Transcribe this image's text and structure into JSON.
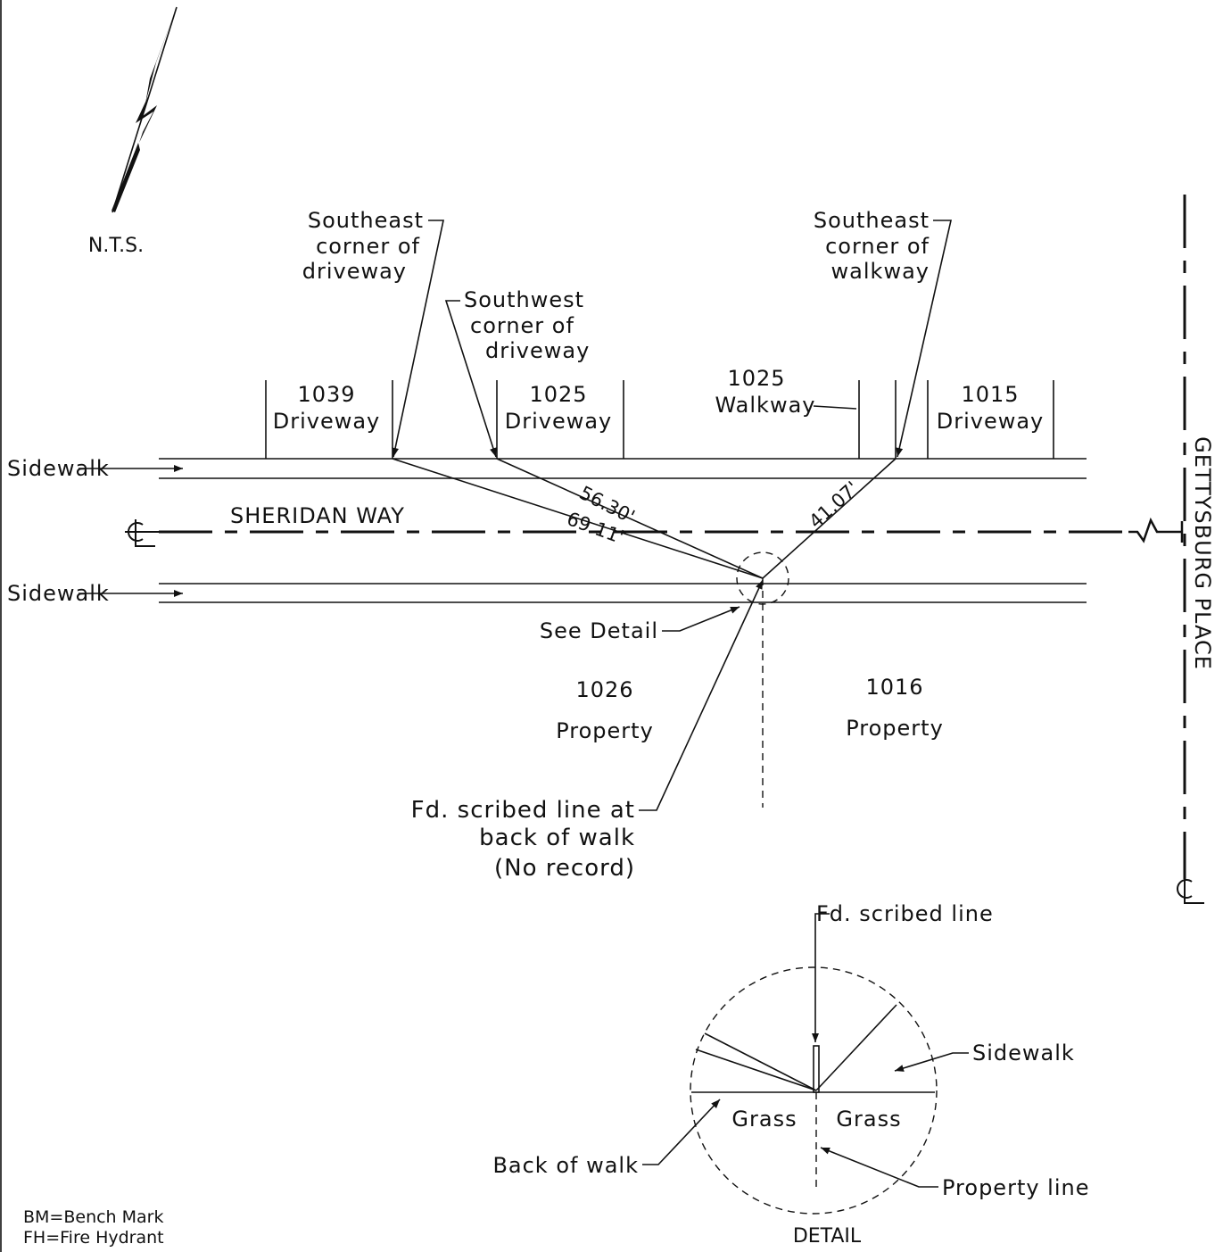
{
  "plan": {
    "north_note": "N.T.S.",
    "callouts": [
      {
        "lines": [
          "Southeast",
          "corner of",
          "driveway"
        ]
      },
      {
        "lines": [
          "Southwest",
          "corner of",
          "driveway"
        ]
      },
      {
        "lines": [
          "Southeast",
          "corner of",
          "walkway"
        ]
      }
    ],
    "lots": [
      {
        "number": "1039",
        "label": "Driveway"
      },
      {
        "number": "1025",
        "label": "Driveway"
      },
      {
        "number": "1025",
        "label": "Walkway"
      },
      {
        "number": "1015",
        "label": "Driveway"
      }
    ],
    "sidewalk_labels": [
      "Sidewalk",
      "Sidewalk"
    ],
    "street": "SHERIDAN WAY",
    "cross_street": "GETTYSBURG PLACE",
    "distances": [
      "56.30'",
      "69.11'",
      "41.07'"
    ],
    "see_detail": "See Detail",
    "properties": [
      {
        "number": "1026",
        "label": "Property"
      },
      {
        "number": "1016",
        "label": "Property"
      }
    ],
    "found": [
      "Fd. scribed line at",
      "back of walk",
      "(No record)"
    ]
  },
  "detail": {
    "title": "DETAIL",
    "scribed": "Fd. scribed line",
    "sidewalk": "Sidewalk",
    "grass": [
      "Grass",
      "Grass"
    ],
    "back_of_walk": "Back of walk",
    "property_line": "Property line"
  },
  "legend": [
    "BM=Bench Mark",
    "FH=Fire Hydrant"
  ]
}
